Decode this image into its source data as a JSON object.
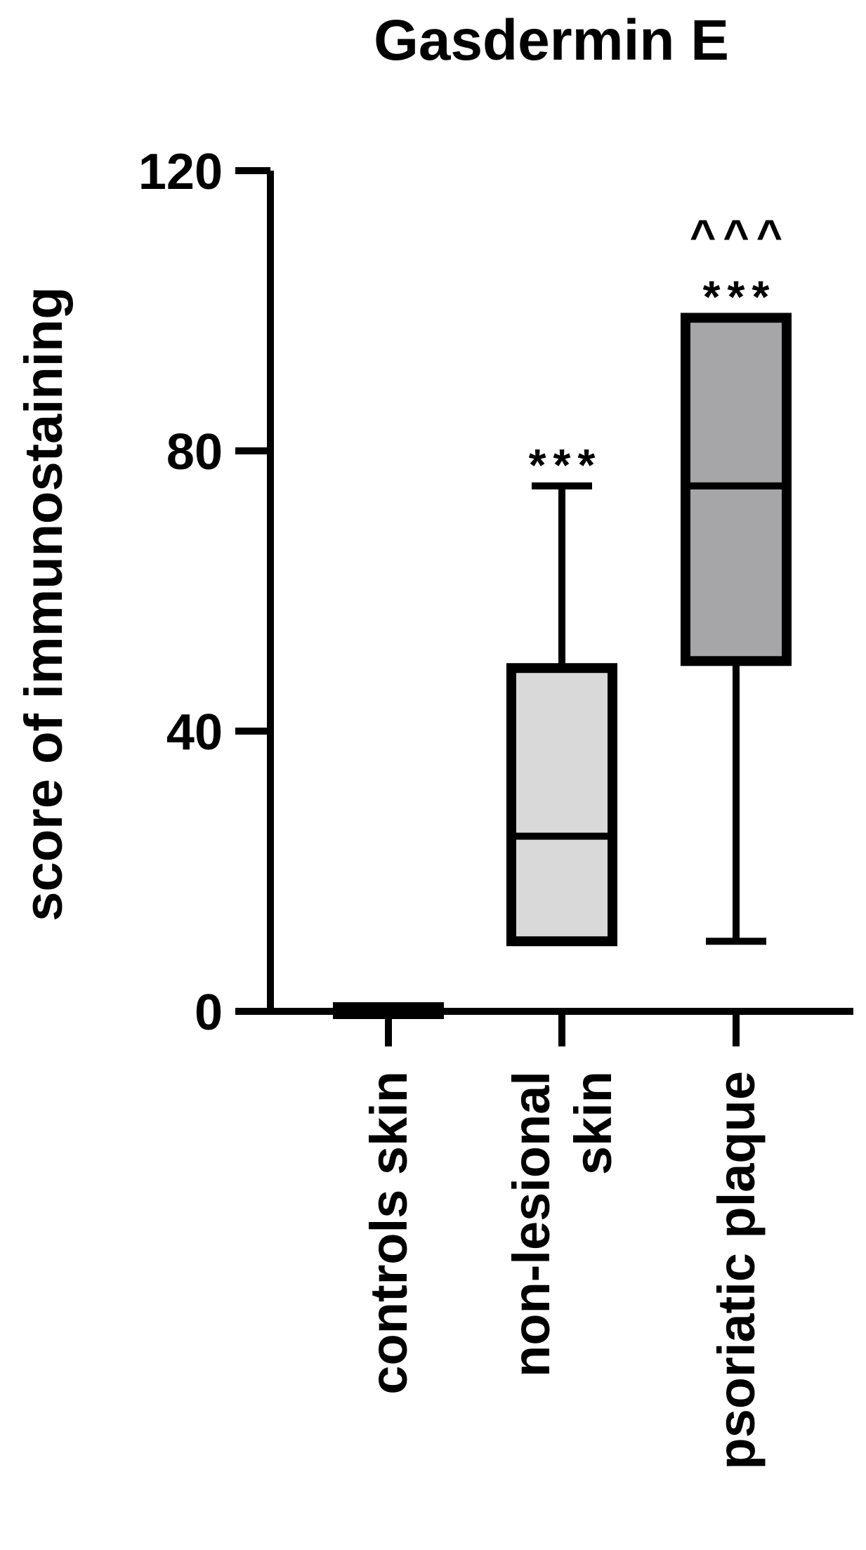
{
  "chart_data": {
    "type": "box",
    "title": "Gasdermin E",
    "ylabel": "score of immunostaining",
    "xlabel": "",
    "ylim": [
      0,
      120
    ],
    "yticks": [
      0,
      40,
      80,
      120
    ],
    "grid": false,
    "categories": [
      [
        "controls skin"
      ],
      [
        "non-lesional",
        "skin"
      ],
      [
        "psoriatic plaque"
      ]
    ],
    "boxes": [
      {
        "category": "controls skin",
        "min": 0,
        "q1": 0,
        "median": 0,
        "q3": 1,
        "max": 1,
        "fill": "#000000",
        "annotations": []
      },
      {
        "category": "non-lesional skin",
        "min": 10,
        "q1": 10,
        "median": 25,
        "q3": 49,
        "max": 75,
        "fill": "#d9d9d9",
        "annotations": [
          "***"
        ]
      },
      {
        "category": "psoriatic plaque",
        "min": 10,
        "q1": 50,
        "median": 75,
        "q3": 99,
        "max": 99,
        "fill": "#a6a6a8",
        "annotations": [
          "***",
          "^^^"
        ]
      }
    ]
  }
}
